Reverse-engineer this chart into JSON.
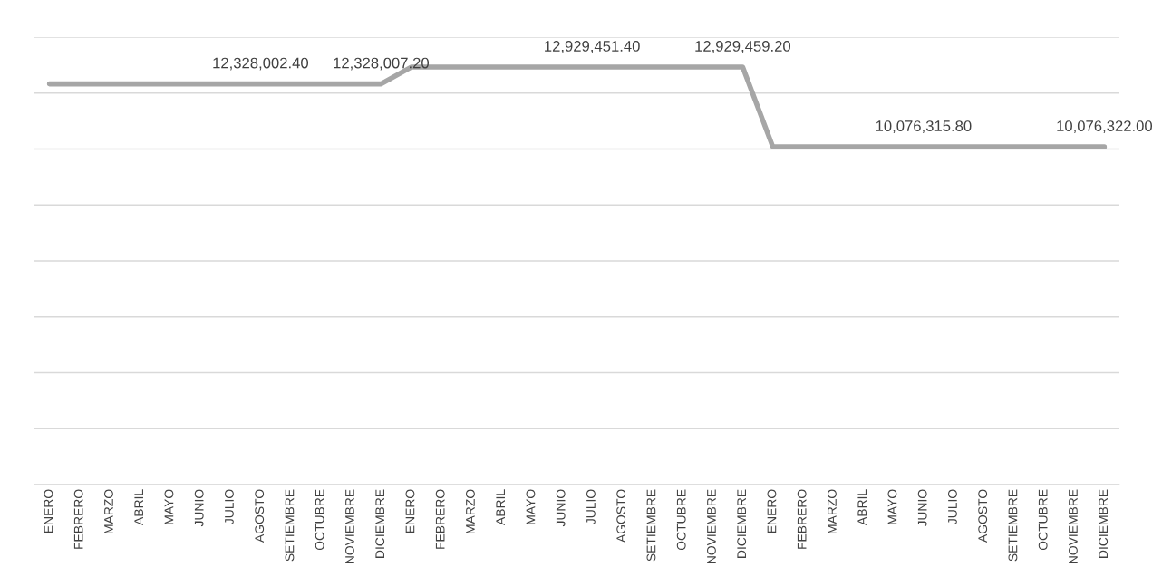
{
  "chart_data": {
    "type": "line",
    "categories": [
      "ENERO",
      "FEBRERO",
      "MARZO",
      "ABRIL",
      "MAYO",
      "JUNIO",
      "JULIO",
      "AGOSTO",
      "SETIEMBRE",
      "OCTUBRE",
      "NOVIEMBRE",
      "DICIEMBRE",
      "ENERO",
      "FEBRERO",
      "MARZO",
      "ABRIL",
      "MAYO",
      "JUNIO",
      "JULIO",
      "AGOSTO",
      "SETIEMBRE",
      "OCTUBRE",
      "NOVIEMBRE",
      "DICIEMBRE",
      "ENERO",
      "FEBRERO",
      "MARZO",
      "ABRIL",
      "MAYO",
      "JUNIO",
      "JULIO",
      "AGOSTO",
      "SETIEMBRE",
      "OCTUBRE",
      "NOVIEMBRE",
      "DICIEMBRE"
    ],
    "series": [
      {
        "color": "#a6a6a6",
        "values": [
          12328002.4,
          12328002.4,
          12328002.4,
          12328002.4,
          12328002.4,
          12328002.4,
          12328002.4,
          12328002.4,
          12328002.4,
          12328002.4,
          12328002.4,
          12328007.2,
          12929451.4,
          12929451.4,
          12929451.4,
          12929451.4,
          12929451.4,
          12929451.4,
          12929451.4,
          12929451.4,
          12929451.4,
          12929451.4,
          12929451.4,
          12929459.2,
          10076315.8,
          10076315.8,
          10076315.8,
          10076315.8,
          10076315.8,
          10076315.8,
          10076315.8,
          10076315.8,
          10076315.8,
          10076315.8,
          10076315.8,
          10076322.0
        ],
        "value_labels": [
          null,
          null,
          null,
          null,
          null,
          null,
          null,
          "12,328,002.40",
          null,
          null,
          null,
          "12,328,007.20",
          null,
          null,
          null,
          null,
          null,
          null,
          "12,929,451.40",
          null,
          null,
          null,
          null,
          "12,929,459.20",
          null,
          null,
          null,
          null,
          null,
          "10,076,315.80",
          null,
          null,
          null,
          null,
          null,
          "10,076,322.00"
        ]
      }
    ],
    "ylim": [
      -2000000,
      14000000
    ],
    "yticks": [
      {
        "value": -2000000,
        "label": null
      },
      {
        "value": 0,
        "label": null
      },
      {
        "value": 2000000,
        "label": null
      },
      {
        "value": 4000000,
        "label": null
      },
      {
        "value": 6000000,
        "label": null
      },
      {
        "value": 8000000,
        "label": null
      },
      {
        "value": 10000000,
        "label": null
      },
      {
        "value": 12000000,
        "label": null
      },
      {
        "value": 14000000,
        "label": null
      }
    ],
    "tick_labels": "x",
    "grid": "y",
    "legend": false,
    "marker": "none",
    "line_style": "solid"
  }
}
